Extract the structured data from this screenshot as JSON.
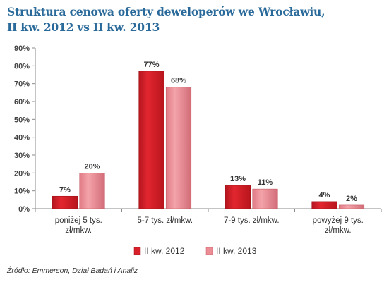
{
  "title_lines": [
    "Struktura cenowa oferty deweloperów we Wrocławiu,",
    "II kw. 2012 vs II kw. 2013"
  ],
  "source": "Źródło: Emmerson, Dział Badań i Analiz",
  "colors": {
    "title": "#2a6a9a",
    "series_2012": "#d8202a",
    "series_2012_dark": "#a3141c",
    "series_2013": "#ec8c94",
    "series_2013_dark": "#c55e68",
    "axis": "#8a8a8a",
    "text": "#333333"
  },
  "chart_data": {
    "type": "bar",
    "categories": [
      [
        "poniżej 5 tys.",
        "zł/mkw."
      ],
      [
        "5-7 tys. zł/mkw."
      ],
      [
        "7-9 tys. zł/mkw."
      ],
      [
        "powyżej 9 tys.",
        "zł/mkw."
      ]
    ],
    "series": [
      {
        "name": "II kw. 2012",
        "values": [
          7,
          77,
          13,
          4
        ],
        "labels": [
          "7%",
          "77%",
          "13%",
          "4%"
        ]
      },
      {
        "name": "II kw. 2013",
        "values": [
          20,
          68,
          11,
          2
        ],
        "labels": [
          "20%",
          "68%",
          "11%",
          "2%"
        ]
      }
    ],
    "ylim": [
      0,
      90
    ],
    "yticks": [
      0,
      10,
      20,
      30,
      40,
      50,
      60,
      70,
      80,
      90
    ],
    "ytick_labels": [
      "0%",
      "10%",
      "20%",
      "30%",
      "40%",
      "50%",
      "60%",
      "70%",
      "80%",
      "90%"
    ],
    "grid": false,
    "legend_position": "bottom"
  }
}
